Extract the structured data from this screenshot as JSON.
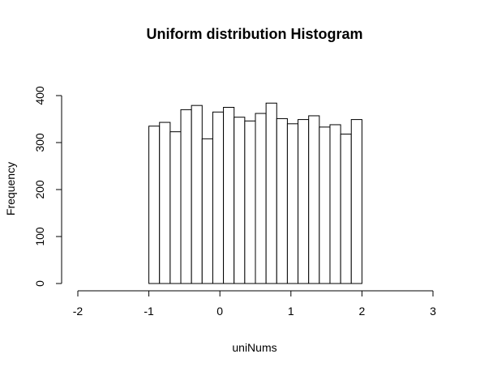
{
  "chart_data": {
    "type": "bar",
    "title": "Uniform distribution Histogram",
    "xlabel": "uniNums",
    "ylabel": "Frequency",
    "bin_width": 0.15,
    "bins_start": [
      -1.0,
      -0.85,
      -0.7,
      -0.55,
      -0.4,
      -0.25,
      -0.1,
      0.05,
      0.2,
      0.35,
      0.5,
      0.65,
      0.8,
      0.95,
      1.1,
      1.25,
      1.4,
      1.55,
      1.7,
      1.85
    ],
    "values": [
      335,
      343,
      323,
      370,
      379,
      308,
      365,
      375,
      354,
      346,
      362,
      384,
      351,
      340,
      349,
      357,
      333,
      338,
      318,
      349
    ],
    "xlim": [
      -2,
      3
    ],
    "ylim": [
      0,
      400
    ],
    "x_ticks": [
      "-2",
      "-1",
      "0",
      "1",
      "2",
      "3"
    ],
    "y_ticks": [
      "0",
      "100",
      "200",
      "300",
      "400"
    ],
    "grid": false,
    "legend": "none"
  }
}
